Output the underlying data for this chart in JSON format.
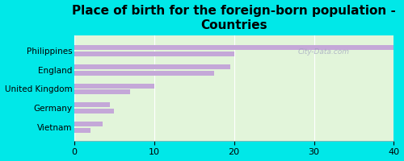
{
  "title": "Place of birth for the foreign-born population -\nCountries",
  "categories": [
    "Philippines",
    "England",
    "United Kingdom",
    "Germany",
    "Vietnam"
  ],
  "bar1_values": [
    40,
    19.5,
    10,
    4.5,
    3.5
  ],
  "bar2_values": [
    20,
    17.5,
    7,
    5.0,
    2.0
  ],
  "bar_color": "#c4a8d8",
  "background_outer": "#00e8e8",
  "background_inner": "#e2f5da",
  "xlim": [
    0,
    40
  ],
  "xticks": [
    0,
    10,
    20,
    30,
    40
  ],
  "title_fontsize": 11,
  "tick_fontsize": 8,
  "label_fontsize": 7.5,
  "watermark": "City-Data.com"
}
